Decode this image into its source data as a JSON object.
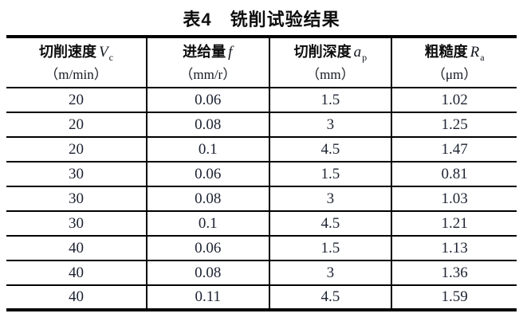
{
  "title": "表4　铣削试验结果",
  "table": {
    "columns": [
      {
        "name": "切削速度",
        "symbol": "V",
        "subscript": "c",
        "unit": "（m/min）"
      },
      {
        "name": "进给量",
        "symbol": "f",
        "subscript": "",
        "unit": "（mm/r）"
      },
      {
        "name": "切削深度",
        "symbol": "a",
        "subscript": "p",
        "unit": "（mm）"
      },
      {
        "name": "粗糙度",
        "symbol": "R",
        "subscript": "a",
        "unit": "（μm）"
      }
    ],
    "rows": [
      [
        "20",
        "0.06",
        "1.5",
        "1.02"
      ],
      [
        "20",
        "0.08",
        "3",
        "1.25"
      ],
      [
        "20",
        "0.1",
        "4.5",
        "1.47"
      ],
      [
        "30",
        "0.06",
        "1.5",
        "0.81"
      ],
      [
        "30",
        "0.08",
        "3",
        "1.03"
      ],
      [
        "30",
        "0.1",
        "4.5",
        "1.21"
      ],
      [
        "40",
        "0.06",
        "1.5",
        "1.13"
      ],
      [
        "40",
        "0.08",
        "3",
        "1.36"
      ],
      [
        "40",
        "0.11",
        "4.5",
        "1.59"
      ]
    ]
  },
  "chart_data": {
    "type": "table",
    "title": "表4　铣削试验结果",
    "columns": [
      "切削速度 Vc（m/min）",
      "进给量 f（mm/r）",
      "切削深度 ap（mm）",
      "粗糙度 Ra（μm）"
    ],
    "rows": [
      [
        20,
        0.06,
        1.5,
        1.02
      ],
      [
        20,
        0.08,
        3,
        1.25
      ],
      [
        20,
        0.1,
        4.5,
        1.47
      ],
      [
        30,
        0.06,
        1.5,
        0.81
      ],
      [
        30,
        0.08,
        3,
        1.03
      ],
      [
        30,
        0.1,
        4.5,
        1.21
      ],
      [
        40,
        0.06,
        1.5,
        1.13
      ],
      [
        40,
        0.08,
        3,
        1.36
      ],
      [
        40,
        0.11,
        4.5,
        1.59
      ]
    ]
  },
  "colors": {
    "background": "#ffffff",
    "text": "#1c2231",
    "heading_text": "#0d0d0d",
    "rule": "#000000"
  }
}
